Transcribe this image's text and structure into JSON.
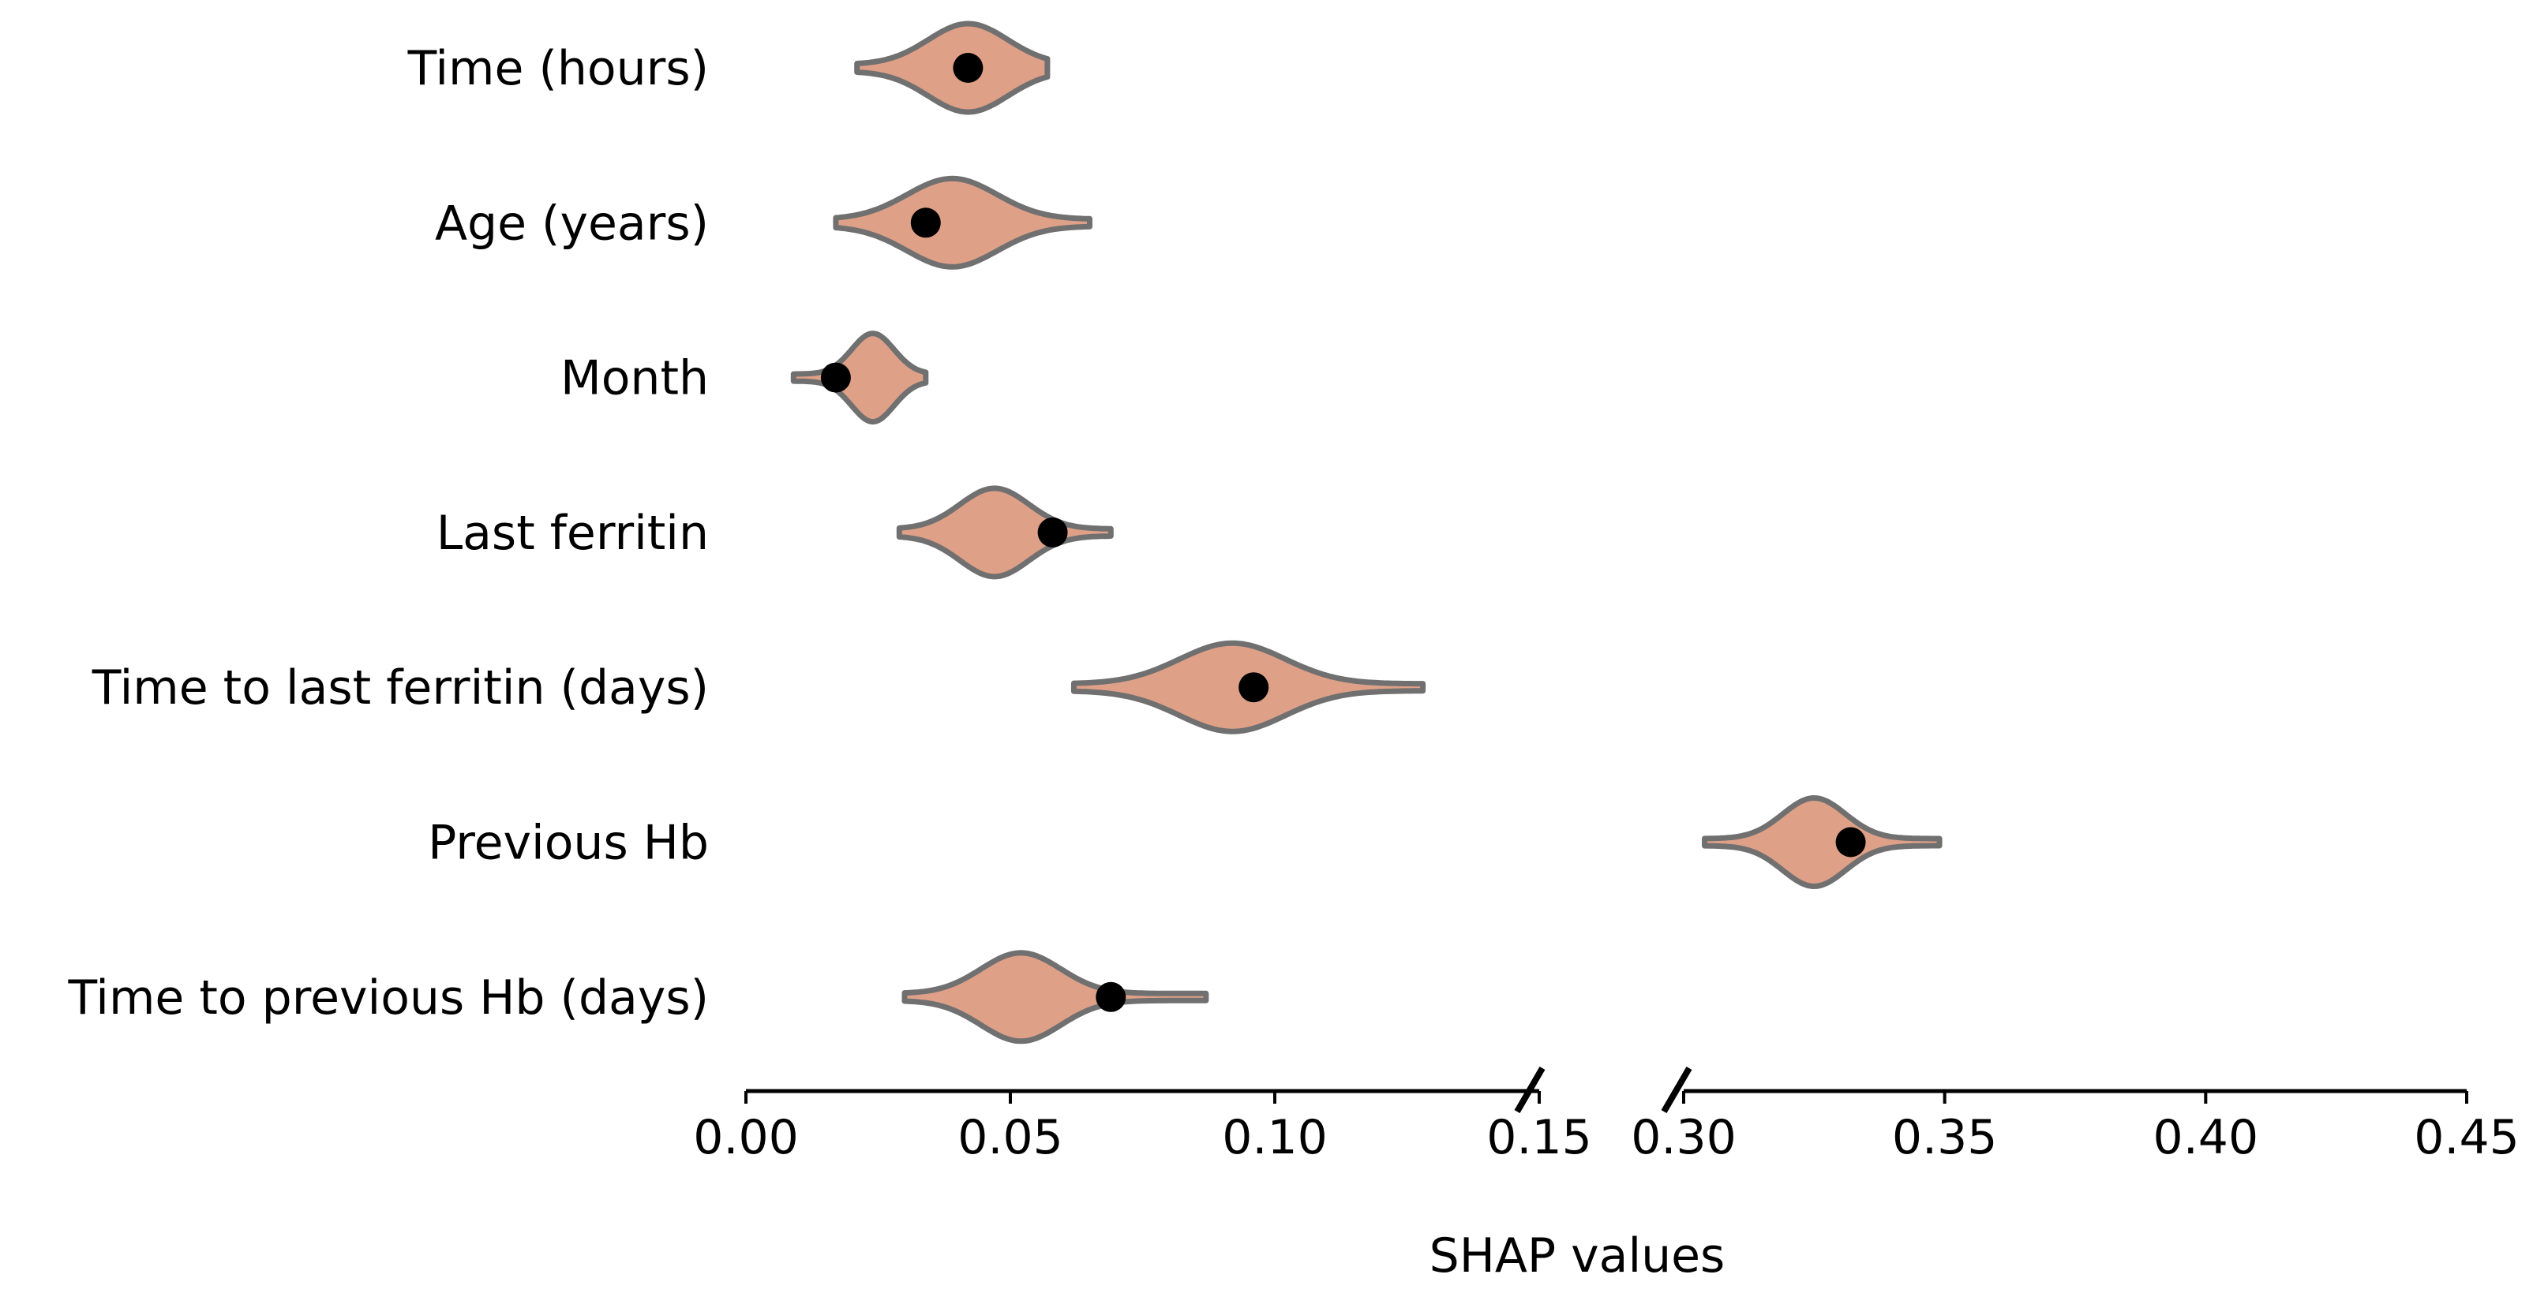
{
  "chart_data": {
    "type": "violin",
    "title": "",
    "xlabel": "SHAP values",
    "ylabel": "",
    "broken_axis": true,
    "segments": [
      {
        "range": [
          0.0,
          0.15
        ],
        "ticks": [
          0.0,
          0.05,
          0.1,
          0.15
        ],
        "tick_labels": [
          "0.00",
          "0.05",
          "0.10",
          "0.15"
        ]
      },
      {
        "range": [
          0.3,
          0.45
        ],
        "ticks": [
          0.3,
          0.35,
          0.4,
          0.45
        ],
        "tick_labels": [
          "0.30",
          "0.35",
          "0.40",
          "0.45"
        ]
      }
    ],
    "fill_color": "#dfa088",
    "edge_color": "#707070",
    "point_color": "#000000",
    "features": [
      {
        "name": "Time (hours)",
        "min": 0.021,
        "max": 0.057,
        "mode": 0.042,
        "spread": 0.0075,
        "point": 0.042
      },
      {
        "name": "Age (years)",
        "min": 0.017,
        "max": 0.065,
        "mode": 0.039,
        "spread": 0.0085,
        "point": 0.034
      },
      {
        "name": "Month",
        "min": 0.009,
        "max": 0.034,
        "mode": 0.024,
        "spread": 0.004,
        "point": 0.017
      },
      {
        "name": "Last ferritin",
        "min": 0.029,
        "max": 0.069,
        "mode": 0.047,
        "spread": 0.0065,
        "point": 0.058
      },
      {
        "name": "Time to last ferritin (days)",
        "min": 0.062,
        "max": 0.128,
        "mode": 0.092,
        "spread": 0.01,
        "point": 0.096
      },
      {
        "name": "Previous Hb",
        "min": 0.304,
        "max": 0.349,
        "mode": 0.325,
        "spread": 0.006,
        "point": 0.332
      },
      {
        "name": "Time to previous Hb (days)",
        "min": 0.03,
        "max": 0.087,
        "mode": 0.052,
        "spread": 0.0075,
        "point": 0.069
      }
    ]
  }
}
